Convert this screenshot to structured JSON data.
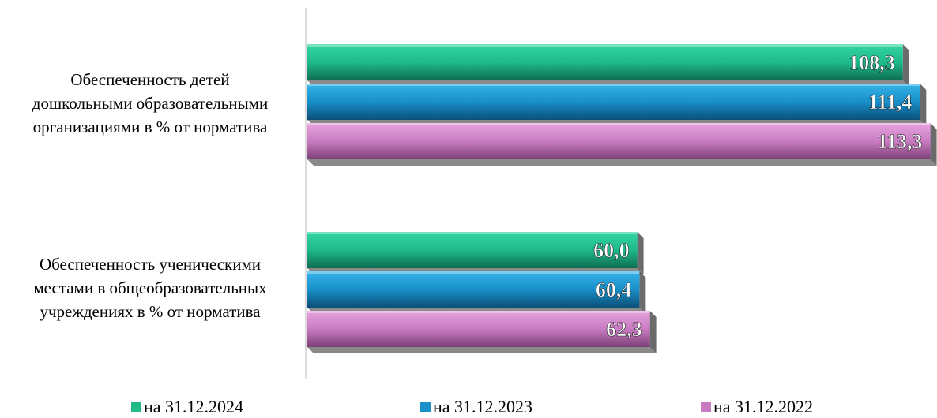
{
  "chart_data": {
    "type": "bar",
    "orientation": "horizontal",
    "categories": [
      "Обеспеченность детей дошкольными образовательными организациями в % от норматива",
      "Обеспеченность ученическими местами в общеобразовательных учреждениях в % от норматива"
    ],
    "category_lines": [
      [
        "Обеспеченность детей",
        "дошкольными образовательными",
        "организациями в % от норматива"
      ],
      [
        "Обеспеченность ученическими",
        "местами в общеобразовательных",
        "учреждениях в % от норматива"
      ]
    ],
    "series": [
      {
        "name": "на 31.12.2024",
        "values": [
          108.3,
          60.0
        ],
        "labels": [
          "108,3",
          "60,0"
        ],
        "color": "#1fb98a"
      },
      {
        "name": "на 31.12.2023",
        "values": [
          111.4,
          60.4
        ],
        "labels": [
          "111,4",
          "60,4"
        ],
        "color": "#1a8fc9"
      },
      {
        "name": "на 31.12.2022",
        "values": [
          113.3,
          62.3
        ],
        "labels": [
          "113,3",
          "62,3"
        ],
        "color": "#c97bc2"
      }
    ],
    "xlim": [
      0,
      115
    ],
    "legend_position": "bottom",
    "grid": false
  }
}
